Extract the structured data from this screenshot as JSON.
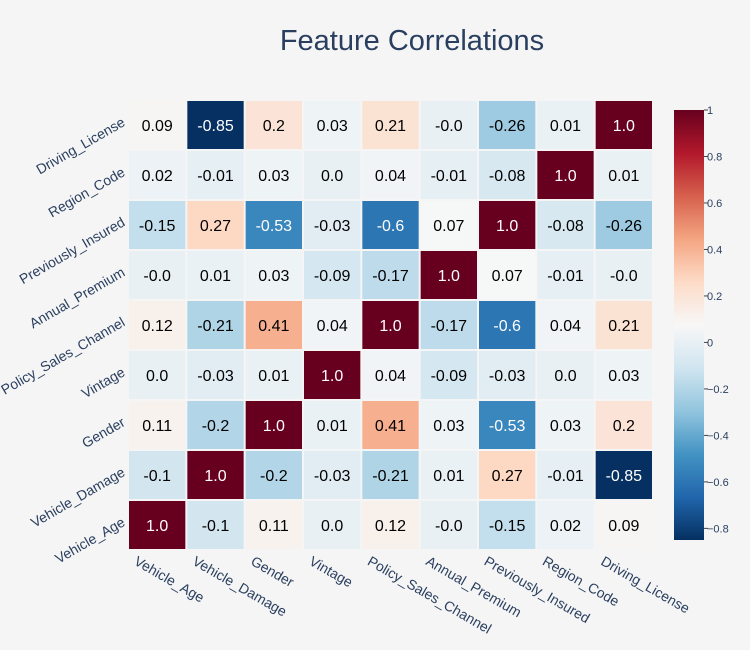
{
  "chart_data": {
    "type": "heatmap",
    "title": "Feature Correlations",
    "x_labels": [
      "Vehicle_Age",
      "Vehicle_Damage",
      "Gender",
      "Vintage",
      "Policy_Sales_Channel",
      "Annual_Premium",
      "Previously_Insured",
      "Region_Code",
      "Driving_License"
    ],
    "y_labels": [
      "Vehicle_Age",
      "Vehicle_Damage",
      "Gender",
      "Vintage",
      "Policy_Sales_Channel",
      "Annual_Premium",
      "Previously_Insured",
      "Region_Code",
      "Driving_License"
    ],
    "values": [
      [
        1.0,
        -0.1,
        0.11,
        0.0,
        0.12,
        -0.0,
        -0.15,
        0.02,
        0.09
      ],
      [
        -0.1,
        1.0,
        -0.2,
        -0.03,
        -0.21,
        0.01,
        0.27,
        -0.01,
        -0.85
      ],
      [
        0.11,
        -0.2,
        1.0,
        0.01,
        0.41,
        0.03,
        -0.53,
        0.03,
        0.2
      ],
      [
        0.0,
        -0.03,
        0.01,
        1.0,
        0.04,
        -0.09,
        -0.03,
        0.0,
        0.03
      ],
      [
        0.12,
        -0.21,
        0.41,
        0.04,
        1.0,
        -0.17,
        -0.6,
        0.04,
        0.21
      ],
      [
        -0.0,
        0.01,
        0.03,
        -0.09,
        -0.17,
        1.0,
        0.07,
        -0.01,
        -0.0
      ],
      [
        -0.15,
        0.27,
        -0.53,
        -0.03,
        -0.6,
        0.07,
        1.0,
        -0.08,
        -0.26
      ],
      [
        0.02,
        -0.01,
        0.03,
        0.0,
        0.04,
        -0.01,
        -0.08,
        1.0,
        0.01
      ],
      [
        0.09,
        -0.85,
        0.2,
        0.03,
        0.21,
        -0.0,
        -0.26,
        0.01,
        1.0
      ]
    ],
    "value_labels": [
      [
        "1.0",
        "-0.1",
        "0.11",
        "0.0",
        "0.12",
        "-0.0",
        "-0.15",
        "0.02",
        "0.09"
      ],
      [
        "-0.1",
        "1.0",
        "-0.2",
        "-0.03",
        "-0.21",
        "0.01",
        "0.27",
        "-0.01",
        "-0.85"
      ],
      [
        "0.11",
        "-0.2",
        "1.0",
        "0.01",
        "0.41",
        "0.03",
        "-0.53",
        "0.03",
        "0.2"
      ],
      [
        "0.0",
        "-0.03",
        "0.01",
        "1.0",
        "0.04",
        "-0.09",
        "-0.03",
        "0.0",
        "0.03"
      ],
      [
        "0.12",
        "-0.21",
        "0.41",
        "0.04",
        "1.0",
        "-0.17",
        "-0.6",
        "0.04",
        "0.21"
      ],
      [
        "-0.0",
        "0.01",
        "0.03",
        "-0.09",
        "-0.17",
        "1.0",
        "0.07",
        "-0.01",
        "-0.0"
      ],
      [
        "-0.15",
        "0.27",
        "-0.53",
        "-0.03",
        "-0.6",
        "0.07",
        "1.0",
        "-0.08",
        "-0.26"
      ],
      [
        "0.02",
        "-0.01",
        "0.03",
        "0.0",
        "0.04",
        "-0.01",
        "-0.08",
        "1.0",
        "0.01"
      ],
      [
        "0.09",
        "-0.85",
        "0.2",
        "0.03",
        "0.21",
        "-0.0",
        "-0.26",
        "0.01",
        "1.0"
      ]
    ],
    "colorscale": "RdBu",
    "zrange": [
      -0.85,
      1.0
    ],
    "colorbar_ticks": [
      1,
      0.8,
      0.6,
      0.4,
      0.2,
      0,
      -0.2,
      -0.4,
      -0.6,
      -0.8
    ],
    "colorbar_tick_labels": [
      "1",
      "0.8",
      "0.6",
      "0.4",
      "0.2",
      "0",
      "−0.2",
      "−0.4",
      "−0.6",
      "−0.8"
    ],
    "colors": {
      "background": "#f5f5f5",
      "title": "#2a3f5f",
      "axis_labels": "#2a3f5f"
    }
  }
}
